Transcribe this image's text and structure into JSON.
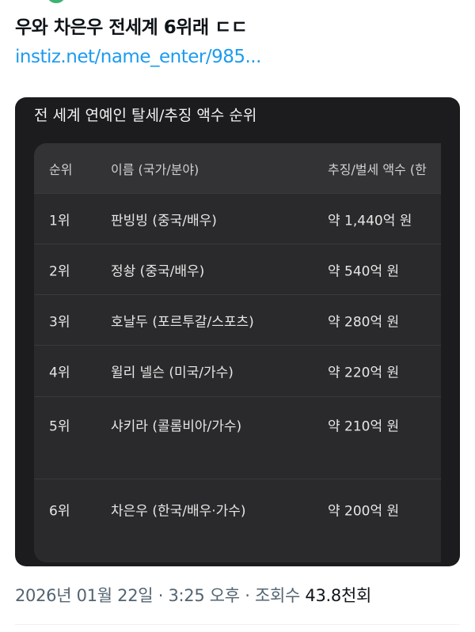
{
  "tweet": {
    "text": "우와 차은우 전세계 6위래 ㄷㄷ",
    "link": "instiz.net/name_enter/985..."
  },
  "card": {
    "title": "전 세계 연예인 탈세/추징 액수 순위",
    "headers": [
      "순위",
      "이름 (국가/분야)",
      "추징/벌세 액수 (한"
    ],
    "rows": [
      [
        "1위",
        "판빙빙 (중국/배우)",
        "약 1,440억 원"
      ],
      [
        "2위",
        "정솽 (중국/배우)",
        "약 540억 원"
      ],
      [
        "3위",
        "호날두 (포르투갈/스포츠)",
        "약 280억 원"
      ],
      [
        "4위",
        "윌리 넬슨 (미국/가수)",
        "약 220억 원"
      ],
      [
        "5위",
        "샤키라 (콜롬비아/가수)",
        "약 210억 원"
      ],
      [
        "6위",
        "차은우 (한국/배우·가수)",
        "약 200억 원"
      ]
    ]
  },
  "meta": {
    "date": "2026년 01월 22일",
    "time": "3:25 오후",
    "views_label": "조회수",
    "views": "43.8천회"
  },
  "colors": {
    "link": "#1d9bf0",
    "card_bg": "#1c1c1e"
  }
}
